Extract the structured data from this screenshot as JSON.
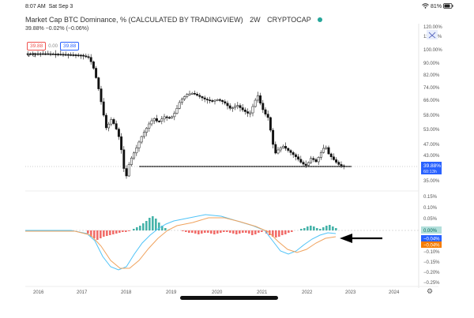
{
  "status": {
    "time": "8:07 AM",
    "date": "Sat Sep 3",
    "battery": "81%"
  },
  "header": {
    "title": "Market Cap BTC Dominance, % (CALCULATED BY TRADINGVIEW)",
    "interval": "2W",
    "exchange": "CRYPTOCAP",
    "value_line": "39.88% −0.02% (−0.06%)"
  },
  "price_pills": {
    "bid": "39.88",
    "mid": "0.00",
    "ask": "39.88"
  },
  "main_axis": {
    "labels": [
      "120.00%",
      "110.00%",
      "100.00%",
      "90.00%",
      "82.00%",
      "74.00%",
      "66.00%",
      "58.00%",
      "53.00%",
      "47.00%",
      "43.00%",
      "35.00%"
    ],
    "current_badge": "39.88%",
    "current_sub": "60:13h"
  },
  "macd_axis": {
    "labels": [
      "0.15%",
      "0.10%",
      "0.05%",
      "−0.10%",
      "−0.15%",
      "−0.20%",
      "−0.25%"
    ],
    "badge_zero": "0.00%",
    "badge_blue": "−0.04%",
    "badge_orange": "−0.04%"
  },
  "time_axis": {
    "labels": [
      "2016",
      "2017",
      "2018",
      "2019",
      "2020",
      "2021",
      "2022",
      "2023",
      "2024"
    ]
  },
  "colors": {
    "candle": "#111111",
    "support_line": "#111111",
    "histogram_up": "#26a69a",
    "histogram_down": "#ef5350",
    "macd_line": "#4fc3f7",
    "signal_line": "#f0a35e",
    "badge_blue": "#2962ff",
    "badge_orange": "#f57c00",
    "badge_zero": "#26a69a",
    "arrow": "#000000"
  },
  "icons": {
    "wifi": "wifi-icon",
    "battery": "battery-icon",
    "fullscreen": "expand-icon",
    "settings": "gear-icon",
    "collapse": "chevron-down-icon"
  }
}
